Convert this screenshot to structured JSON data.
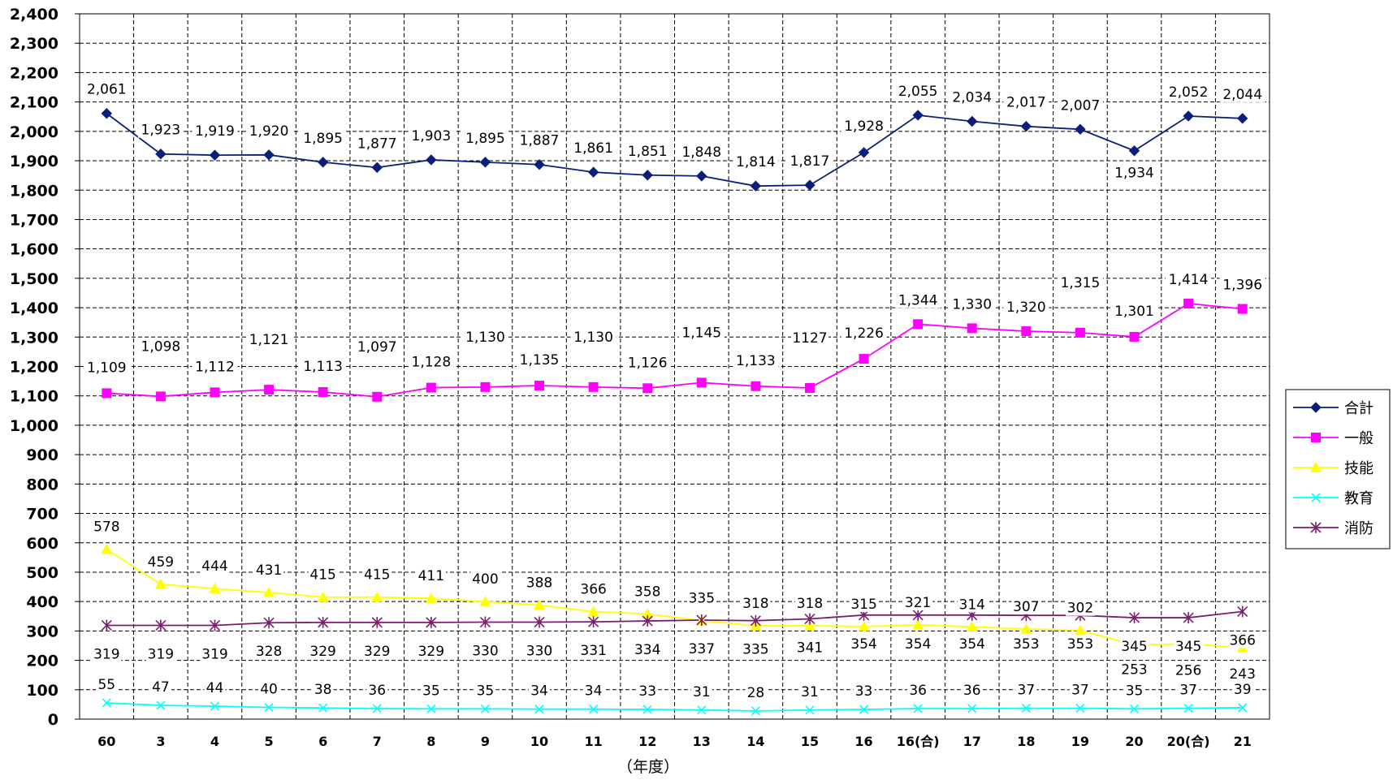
{
  "chart_data": {
    "type": "line",
    "xlabel": "（年度）",
    "ylim": [
      0,
      2400
    ],
    "ytick_step": 100,
    "grid": true,
    "legend_position": "right",
    "categories": [
      "60",
      "3",
      "4",
      "5",
      "6",
      "7",
      "8",
      "9",
      "10",
      "11",
      "12",
      "13",
      "14",
      "15",
      "16",
      "16(合)",
      "17",
      "18",
      "19",
      "20",
      "20(合)",
      "21"
    ],
    "yticks": [
      "0",
      "100",
      "200",
      "300",
      "400",
      "500",
      "600",
      "700",
      "800",
      "900",
      "1,000",
      "1,100",
      "1,200",
      "1,300",
      "1,400",
      "1,500",
      "1,600",
      "1,700",
      "1,800",
      "1,900",
      "2,000",
      "2,100",
      "2,200",
      "2,300",
      "2,400"
    ],
    "series": [
      {
        "name": "合計",
        "color": "#0b1f7a",
        "marker": "diamond",
        "values": [
          2061,
          1923,
          1919,
          1920,
          1895,
          1877,
          1903,
          1895,
          1887,
          1861,
          1851,
          1848,
          1814,
          1817,
          1928,
          2055,
          2034,
          2017,
          2007,
          1934,
          2052,
          2044
        ],
        "labels": [
          "2,061",
          "1,923",
          "1,919",
          "1,920",
          "1,895",
          "1,877",
          "1,903",
          "1,895",
          "1,887",
          "1,861",
          "1,851",
          "1,848",
          "1,814",
          "1,817",
          "1,928",
          "2,055",
          "2,034",
          "2,017",
          "2,007",
          "1,934",
          "2,052",
          "2,044"
        ]
      },
      {
        "name": "一般",
        "color": "#ff00ff",
        "marker": "square",
        "values": [
          1109,
          1098,
          1112,
          1121,
          1113,
          1097,
          1128,
          1130,
          1135,
          1130,
          1126,
          1145,
          1133,
          1127,
          1226,
          1344,
          1330,
          1320,
          1315,
          1301,
          1414,
          1396
        ],
        "labels": [
          "1,109",
          "1,098",
          "1,112",
          "1,121",
          "1,113",
          "1,097",
          "1,128",
          "1,130",
          "1,135",
          "1,130",
          "1,126",
          "1,145",
          "1,133",
          "1127",
          "1,226",
          "1,344",
          "1,330",
          "1,320",
          "1,315",
          "1,301",
          "1,414",
          "1,396"
        ]
      },
      {
        "name": "技能",
        "color": "#ffff00",
        "marker": "triangle",
        "values": [
          578,
          459,
          444,
          431,
          415,
          415,
          411,
          400,
          388,
          366,
          358,
          335,
          318,
          318,
          315,
          321,
          314,
          307,
          302,
          253,
          256,
          243
        ],
        "labels": [
          "578",
          "459",
          "444",
          "431",
          "415",
          "415",
          "411",
          "400",
          "388",
          "366",
          "358",
          "335",
          "318",
          "318",
          "315",
          "321",
          "314",
          "307",
          "302",
          "253",
          "256",
          "243"
        ]
      },
      {
        "name": "教育",
        "color": "#00ffff",
        "marker": "x",
        "values": [
          55,
          47,
          44,
          40,
          38,
          36,
          35,
          35,
          34,
          34,
          33,
          31,
          28,
          31,
          33,
          36,
          36,
          37,
          37,
          35,
          37,
          39
        ],
        "labels": [
          "55",
          "47",
          "44",
          "40",
          "38",
          "36",
          "35",
          "35",
          "34",
          "34",
          "33",
          "31",
          "28",
          "31",
          "33",
          "36",
          "36",
          "37",
          "37",
          "35",
          "37",
          "39"
        ]
      },
      {
        "name": "消防",
        "color": "#7a1f6e",
        "marker": "star",
        "values": [
          319,
          319,
          319,
          328,
          329,
          329,
          329,
          330,
          330,
          331,
          334,
          337,
          335,
          341,
          354,
          354,
          354,
          353,
          353,
          345,
          345,
          366
        ],
        "labels": [
          "319",
          "319",
          "319",
          "328",
          "329",
          "329",
          "329",
          "330",
          "330",
          "331",
          "334",
          "337",
          "335",
          "341",
          "354",
          "354",
          "354",
          "353",
          "353",
          "345",
          "345",
          "366"
        ]
      }
    ]
  }
}
